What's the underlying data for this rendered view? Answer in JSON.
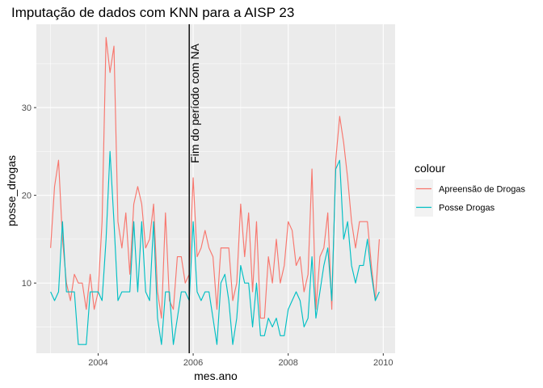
{
  "chart_data": {
    "type": "line",
    "title": "Imputação de dados com KNN para a AISP 23",
    "xlabel": "mes.ano",
    "ylabel": "posse_drogas",
    "xlim": [
      2002.7,
      2010.25
    ],
    "ylim": [
      2.0,
      39.5
    ],
    "x_ticks": [
      2004,
      2006,
      2008,
      2010
    ],
    "x_tick_labels": [
      "2004",
      "2006",
      "2008",
      "2010"
    ],
    "y_ticks": [
      10,
      20,
      30
    ],
    "y_tick_labels": [
      "10",
      "20",
      "30"
    ],
    "grid": true,
    "legend": {
      "title": "colour",
      "position": "right"
    },
    "annotation": {
      "label": "Fim do período com NA",
      "x": 2005.917
    },
    "x": [
      2003.0,
      2003.083,
      2003.167,
      2003.25,
      2003.333,
      2003.417,
      2003.5,
      2003.583,
      2003.667,
      2003.75,
      2003.833,
      2003.917,
      2004.0,
      2004.083,
      2004.167,
      2004.25,
      2004.333,
      2004.417,
      2004.5,
      2004.583,
      2004.667,
      2004.75,
      2004.833,
      2004.917,
      2005.0,
      2005.083,
      2005.167,
      2005.25,
      2005.333,
      2005.417,
      2005.5,
      2005.583,
      2005.667,
      2005.75,
      2005.833,
      2005.917,
      2006.0,
      2006.083,
      2006.167,
      2006.25,
      2006.333,
      2006.417,
      2006.5,
      2006.583,
      2006.667,
      2006.75,
      2006.833,
      2006.917,
      2007.0,
      2007.083,
      2007.167,
      2007.25,
      2007.333,
      2007.417,
      2007.5,
      2007.583,
      2007.667,
      2007.75,
      2007.833,
      2007.917,
      2008.0,
      2008.083,
      2008.167,
      2008.25,
      2008.333,
      2008.417,
      2008.5,
      2008.583,
      2008.667,
      2008.75,
      2008.833,
      2008.917,
      2009.0,
      2009.083,
      2009.167,
      2009.25,
      2009.333,
      2009.417,
      2009.5,
      2009.583,
      2009.667,
      2009.75,
      2009.833,
      2009.917
    ],
    "series": [
      {
        "name": "Apreensão de Drogas",
        "color": "#F8766D",
        "values": [
          14,
          21,
          24,
          15,
          10,
          8,
          11,
          10,
          10,
          7,
          11,
          7,
          9,
          17,
          38,
          34,
          37,
          17,
          14,
          18,
          11,
          19,
          21,
          19,
          14,
          15,
          19,
          9,
          6,
          18,
          8,
          7,
          13,
          13,
          10,
          11,
          22,
          13,
          14,
          16,
          14,
          13,
          7,
          14,
          14,
          14,
          8,
          10,
          19,
          13,
          18,
          9,
          17,
          6,
          6,
          13,
          10,
          15,
          10,
          12,
          17,
          16,
          12,
          13,
          9,
          11,
          23,
          7,
          13,
          14,
          18,
          7,
          24,
          29,
          26,
          22,
          17,
          14,
          17,
          17,
          17,
          12,
          8,
          15
        ]
      },
      {
        "name": "Posse Drogas",
        "color": "#00BFC4",
        "values": [
          9,
          8,
          9,
          17,
          9,
          9,
          9,
          3,
          3,
          3,
          9,
          9,
          9,
          8,
          15,
          25,
          17,
          8,
          9,
          9,
          9,
          17,
          9,
          17,
          9,
          8,
          17,
          6,
          3,
          9,
          9,
          3,
          6,
          9,
          9,
          8,
          17,
          9,
          8,
          9,
          9,
          6,
          3,
          10,
          11,
          8,
          3,
          6,
          12,
          10,
          10,
          5,
          10,
          4,
          4,
          6,
          5,
          6,
          4,
          4,
          7,
          8,
          9,
          8,
          5,
          6,
          13,
          6,
          9,
          12,
          14,
          8,
          23,
          24,
          15,
          17,
          12,
          10,
          12,
          12,
          15,
          11,
          8,
          9
        ]
      }
    ]
  }
}
